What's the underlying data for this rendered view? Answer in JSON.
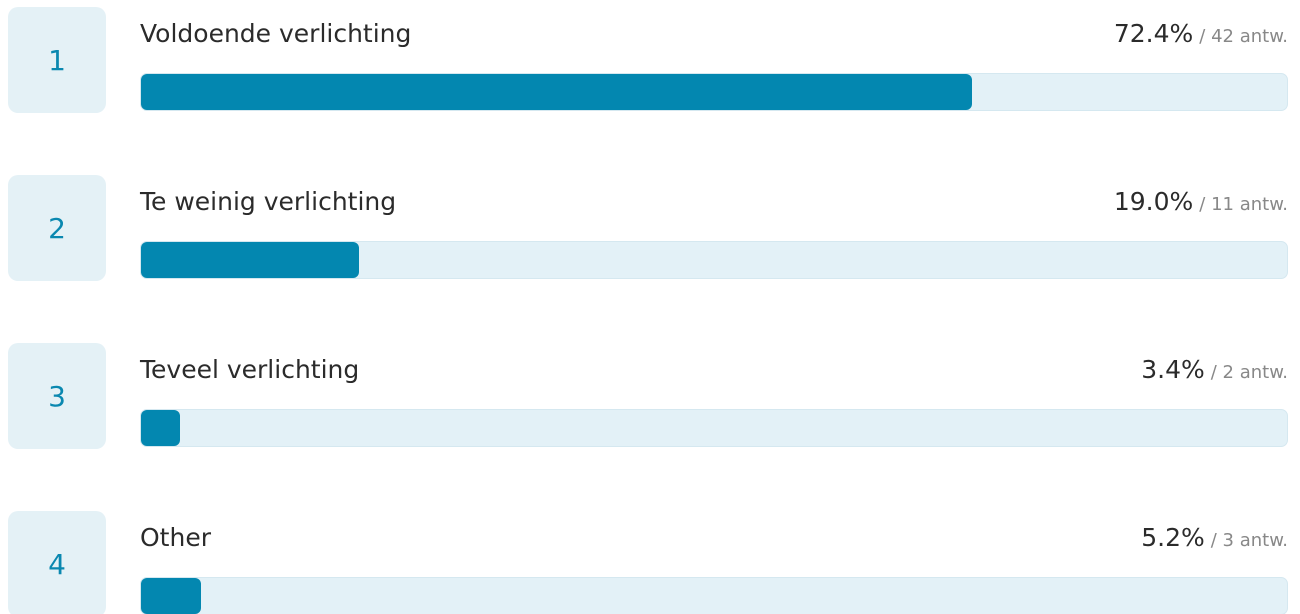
{
  "chart_data": {
    "type": "bar",
    "ranks": [
      1,
      2,
      3,
      4
    ],
    "categories": [
      "Voldoende verlichting",
      "Te weinig verlichting",
      "Teveel verlichting",
      "Other"
    ],
    "values": [
      72.4,
      19.0,
      3.4,
      5.2
    ],
    "value_labels": [
      "72.4%",
      "19.0%",
      "3.4%",
      "5.2%"
    ],
    "count_labels": [
      "/ 42 antw.",
      "/ 11 antw.",
      "/ 2 antw.",
      "/ 3 antw."
    ],
    "xlim": [
      0,
      100
    ],
    "color": "#0387b0",
    "track_color": "#e3f1f7"
  }
}
